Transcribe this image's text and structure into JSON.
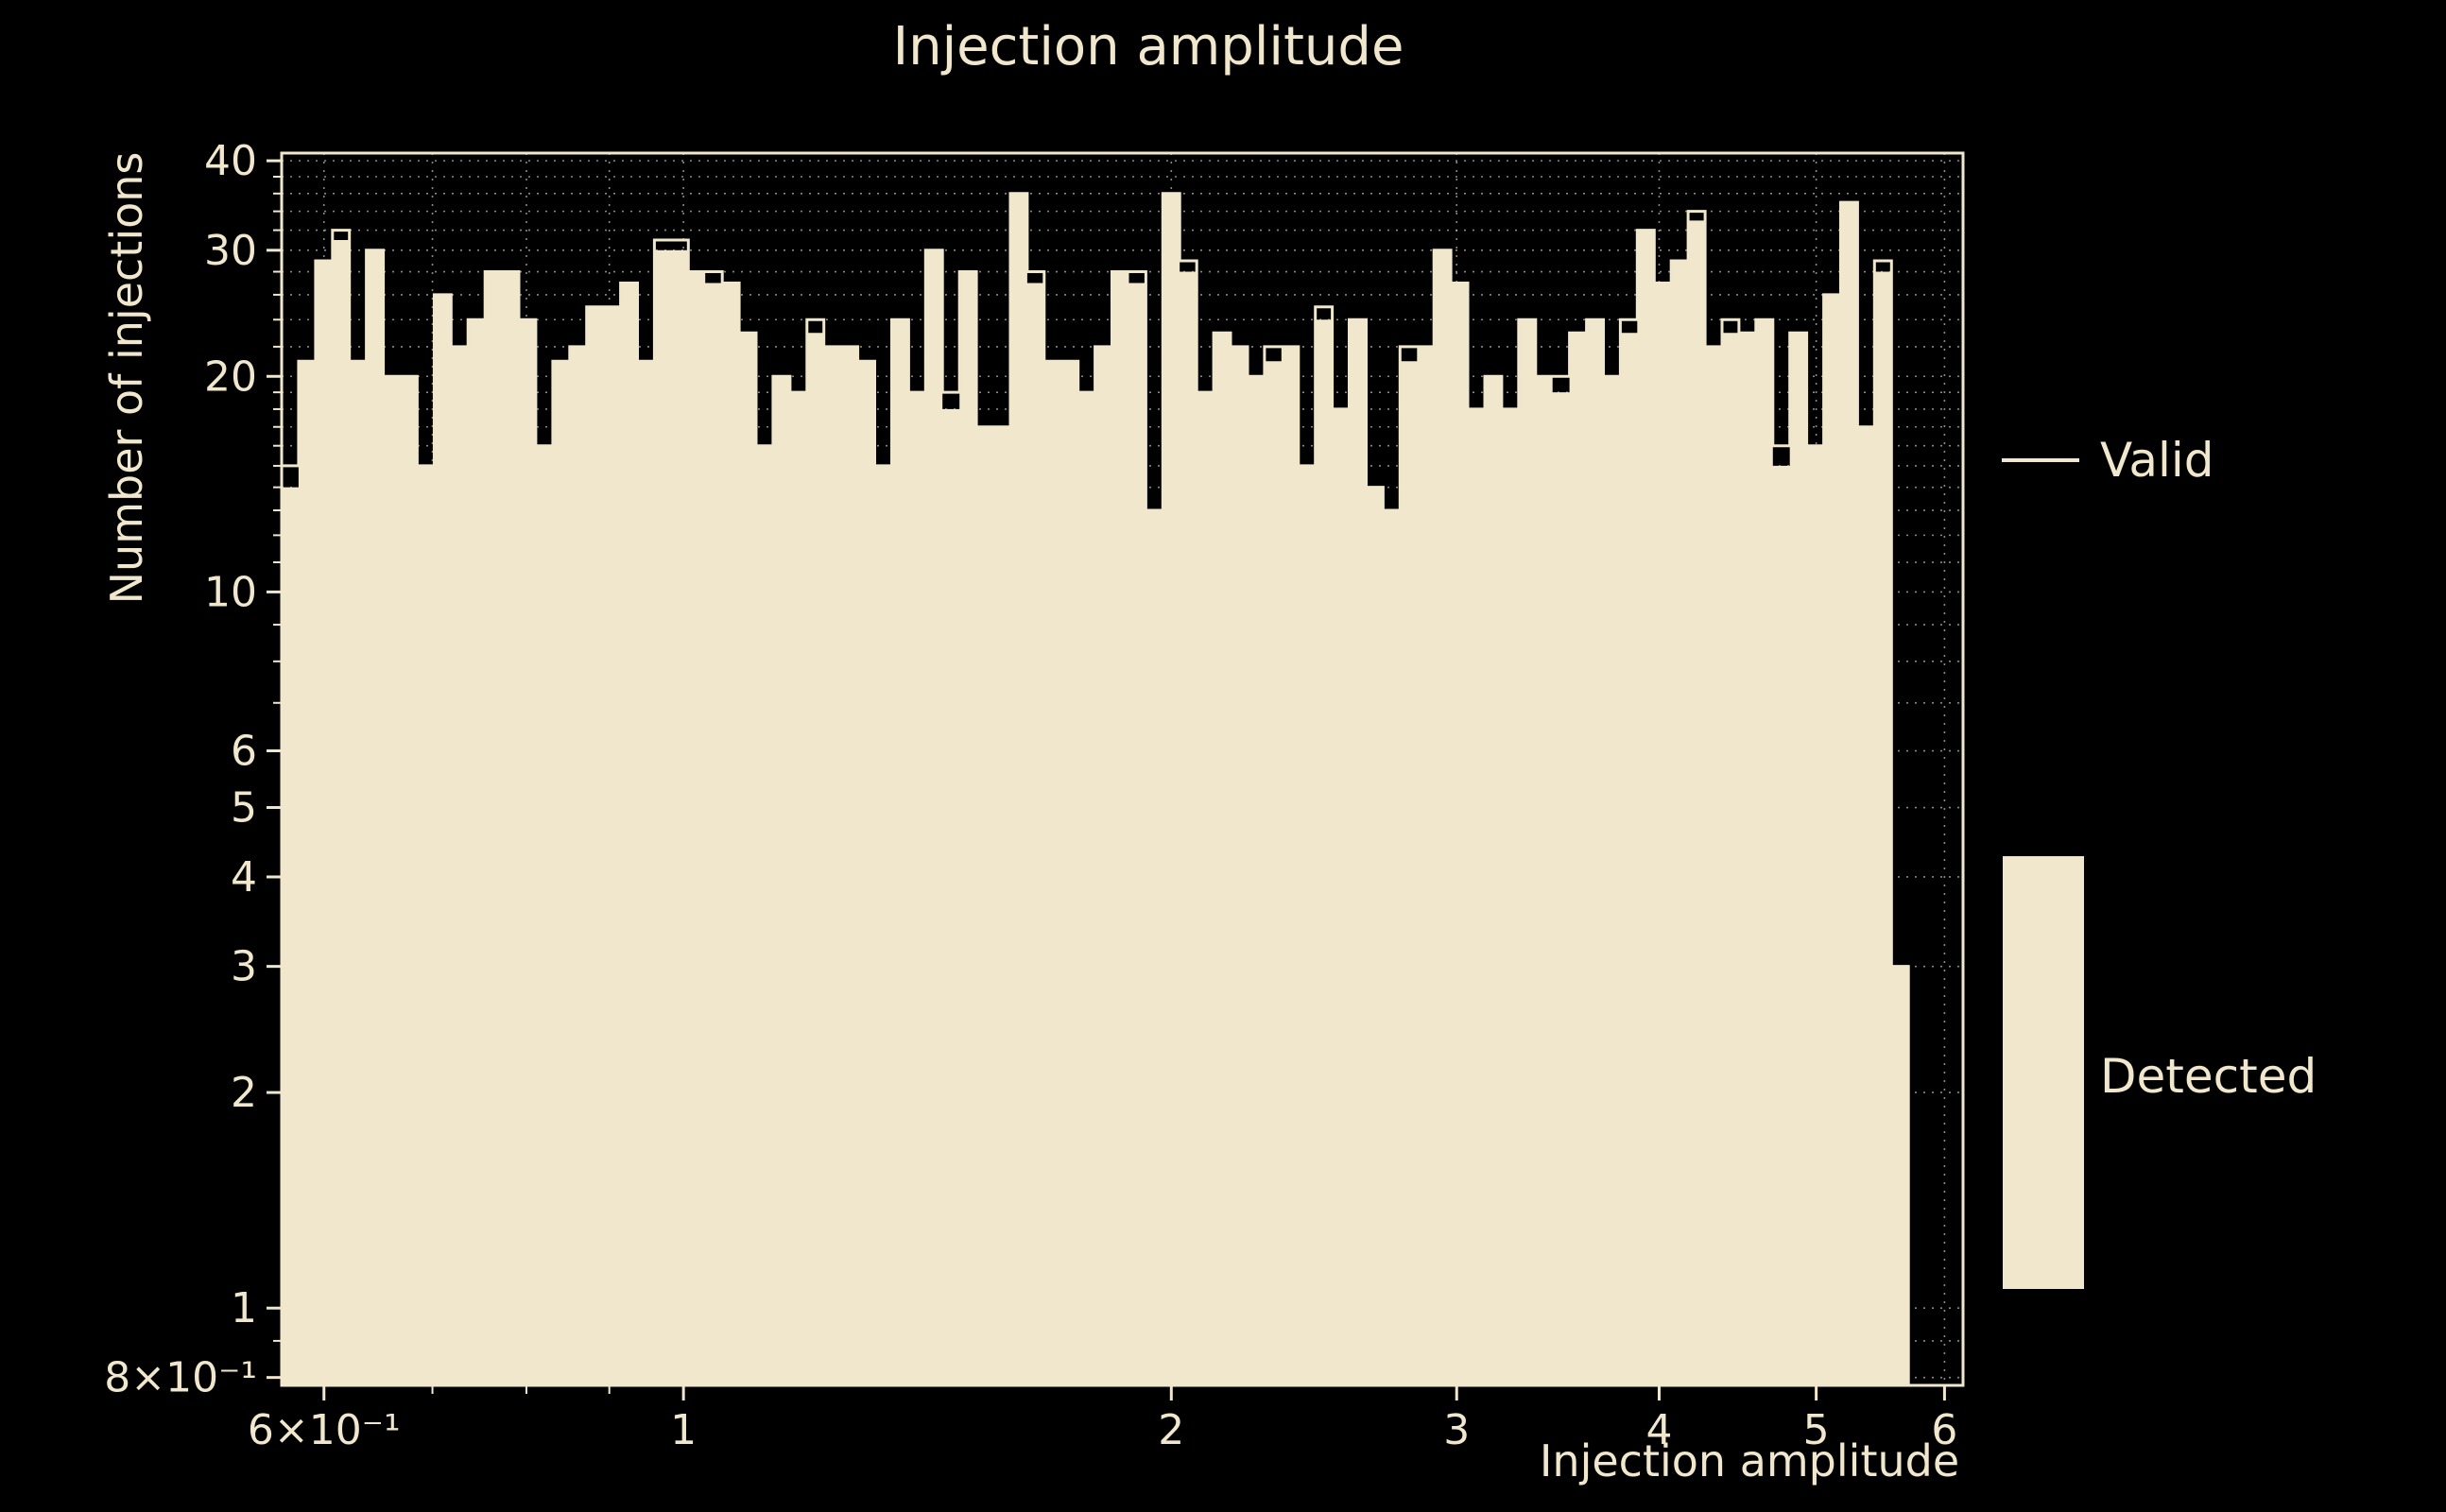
{
  "title": "Injection amplitude",
  "colors": {
    "background": "#000000",
    "foreground": "#f1e7cc",
    "fill": "#f1e7cc",
    "grid": "#b8b8b0"
  },
  "legend": {
    "valid_label": "Valid",
    "detected_label": "Detected"
  },
  "chart_data": {
    "type": "bar",
    "subtype": "histogram",
    "title": "Injection amplitude",
    "xlabel": "Injection amplitude",
    "ylabel": "Number of injections",
    "xscale": "log",
    "yscale": "log",
    "xlim": [
      0.565,
      6.16
    ],
    "ylim": [
      0.78,
      41
    ],
    "grid": true,
    "legend_position": "right-outside",
    "x_ticks": [
      {
        "v": 0.6,
        "label": "6×10⁻¹"
      },
      {
        "v": 1,
        "label": "1"
      },
      {
        "v": 2,
        "label": "2"
      },
      {
        "v": 3,
        "label": "3"
      },
      {
        "v": 4,
        "label": "4"
      },
      {
        "v": 5,
        "label": "5"
      },
      {
        "v": 6,
        "label": "6"
      }
    ],
    "y_ticks": [
      {
        "v": 0.8,
        "label": "8×10⁻¹"
      },
      {
        "v": 1,
        "label": "1"
      },
      {
        "v": 2,
        "label": "2"
      },
      {
        "v": 3,
        "label": "3"
      },
      {
        "v": 4,
        "label": "4"
      },
      {
        "v": 5,
        "label": "5"
      },
      {
        "v": 6,
        "label": "6"
      },
      {
        "v": 10,
        "label": "10"
      },
      {
        "v": 20,
        "label": "20"
      },
      {
        "v": 30,
        "label": "30"
      },
      {
        "v": 40,
        "label": "40"
      }
    ],
    "x_minor": [
      0.7,
      0.8,
      0.9
    ],
    "y_minor": [
      0.9,
      7,
      8,
      9,
      11,
      12,
      13,
      14,
      15,
      16,
      17,
      18,
      19,
      22,
      24,
      26,
      28,
      32,
      34,
      36,
      38
    ],
    "bins": {
      "start": 0.565,
      "end": 5.7,
      "count": 96,
      "spacing": "log"
    },
    "series": [
      {
        "name": "Valid",
        "style": "step-line",
        "values": [
          15,
          21,
          29,
          32,
          21,
          30,
          20,
          20,
          15,
          26,
          22,
          24,
          28,
          28,
          24,
          16,
          21,
          22,
          25,
          25,
          27,
          21,
          31,
          31,
          28,
          28,
          27,
          23,
          16,
          20,
          19,
          24,
          22,
          22,
          21,
          15,
          24,
          19,
          30,
          19,
          28,
          17,
          17,
          36,
          28,
          21,
          21,
          19,
          22,
          28,
          28,
          13,
          36,
          29,
          19,
          23,
          22,
          20,
          22,
          22,
          15,
          25,
          18,
          24,
          14,
          13,
          22,
          22,
          30,
          27,
          18,
          20,
          18,
          24,
          20,
          20,
          23,
          24,
          20,
          24,
          32,
          27,
          29,
          34,
          22,
          24,
          23,
          24,
          16,
          23,
          16,
          26,
          35,
          17,
          29,
          3
        ]
      },
      {
        "name": "Detected",
        "style": "filled",
        "values": [
          14,
          21,
          29,
          31,
          21,
          30,
          20,
          20,
          15,
          26,
          22,
          24,
          28,
          28,
          24,
          16,
          21,
          22,
          25,
          25,
          27,
          21,
          30,
          30,
          28,
          27,
          27,
          23,
          16,
          20,
          19,
          23,
          22,
          22,
          21,
          15,
          24,
          19,
          30,
          18,
          28,
          17,
          17,
          36,
          27,
          21,
          21,
          19,
          22,
          28,
          27,
          13,
          36,
          28,
          19,
          23,
          22,
          20,
          21,
          22,
          15,
          24,
          18,
          24,
          14,
          13,
          21,
          22,
          30,
          27,
          18,
          20,
          18,
          24,
          20,
          19,
          23,
          24,
          20,
          23,
          32,
          27,
          29,
          33,
          22,
          23,
          23,
          24,
          15,
          23,
          16,
          26,
          35,
          17,
          28,
          3
        ]
      }
    ]
  }
}
